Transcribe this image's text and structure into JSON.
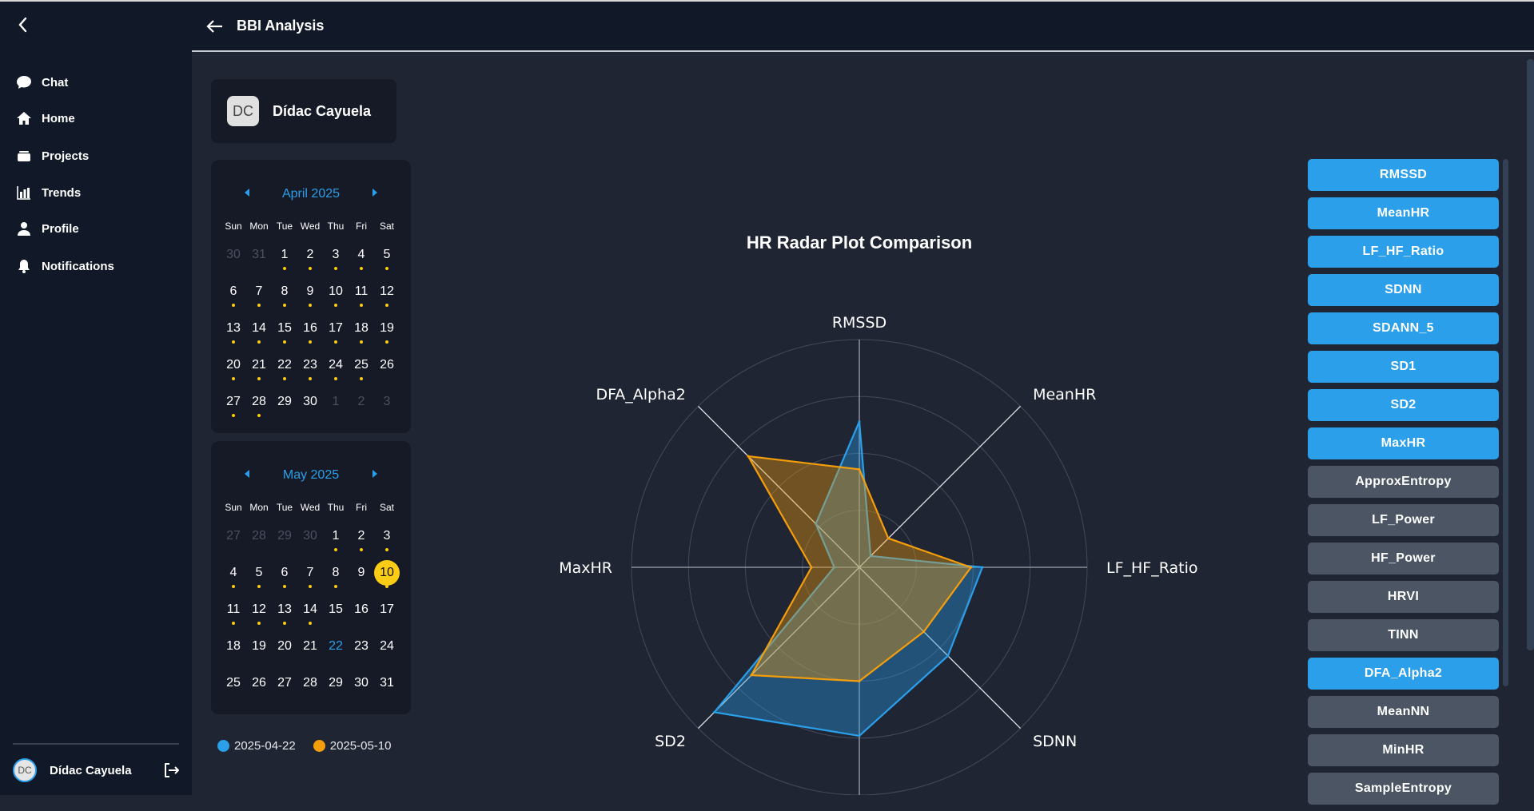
{
  "colors": {
    "accent": "#2b9fe9",
    "inactive": "#4b5563",
    "highlight": "#facc15",
    "series1": "#2b9fe9",
    "series2": "#f59e0b"
  },
  "sidebar": {
    "items": [
      {
        "label": "Chat",
        "icon": "chat-icon"
      },
      {
        "label": "Home",
        "icon": "home-icon"
      },
      {
        "label": "Projects",
        "icon": "projects-icon"
      },
      {
        "label": "Trends",
        "icon": "trends-icon"
      },
      {
        "label": "Profile",
        "icon": "profile-icon"
      },
      {
        "label": "Notifications",
        "icon": "bell-icon"
      }
    ],
    "user": {
      "initials": "DC",
      "name": "Dídac Cayuela"
    }
  },
  "header": {
    "title": "BBI Analysis"
  },
  "profile": {
    "initials": "DC",
    "name": "Dídac Cayuela"
  },
  "weekdays": [
    "Sun",
    "Mon",
    "Tue",
    "Wed",
    "Thu",
    "Fri",
    "Sat"
  ],
  "calendars": [
    {
      "title": "April 2025",
      "leading": [
        30,
        31
      ],
      "days": 30,
      "trailing": [
        1,
        2,
        3
      ],
      "dots": [
        1,
        2,
        3,
        4,
        5,
        6,
        7,
        8,
        9,
        10,
        11,
        12,
        13,
        14,
        15,
        16,
        17,
        18,
        19,
        20,
        21,
        22,
        23,
        24,
        25,
        27,
        28
      ],
      "selected": null,
      "today": null
    },
    {
      "title": "May 2025",
      "leading": [
        27,
        28,
        29,
        30
      ],
      "days": 31,
      "trailing": [],
      "dots": [
        1,
        2,
        3,
        4,
        5,
        6,
        7,
        8,
        10,
        11,
        12,
        13,
        14
      ],
      "selected": 10,
      "today": 22
    }
  ],
  "legend": [
    {
      "label": "2025-04-22"
    },
    {
      "label": "2025-05-10"
    }
  ],
  "metrics": [
    {
      "label": "RMSSD",
      "on": true
    },
    {
      "label": "MeanHR",
      "on": true
    },
    {
      "label": "LF_HF_Ratio",
      "on": true
    },
    {
      "label": "SDNN",
      "on": true
    },
    {
      "label": "SDANN_5",
      "on": true
    },
    {
      "label": "SD1",
      "on": true
    },
    {
      "label": "SD2",
      "on": true
    },
    {
      "label": "MaxHR",
      "on": true
    },
    {
      "label": "ApproxEntropy",
      "on": false
    },
    {
      "label": "LF_Power",
      "on": false
    },
    {
      "label": "HF_Power",
      "on": false
    },
    {
      "label": "HRVI",
      "on": false
    },
    {
      "label": "TINN",
      "on": false
    },
    {
      "label": "DFA_Alpha2",
      "on": true
    },
    {
      "label": "MeanNN",
      "on": false
    },
    {
      "label": "MinHR",
      "on": false
    },
    {
      "label": "SampleEntropy",
      "on": false
    }
  ],
  "chart_data": {
    "type": "radar",
    "title": "HR Radar Plot Comparison",
    "categories": [
      "RMSSD",
      "MeanHR",
      "LF_HF_Ratio",
      "SDNN",
      "",
      "SD2",
      "MaxHR",
      "DFA_Alpha2"
    ],
    "rlim": [
      0,
      1
    ],
    "rings": [
      0.25,
      0.5,
      0.75,
      1
    ],
    "series": [
      {
        "name": "2025-04-22",
        "values": [
          0.64,
          0.07,
          0.54,
          0.55,
          0.74,
          0.9,
          0.11,
          0.27
        ]
      },
      {
        "name": "2025-05-10",
        "values": [
          0.43,
          0.18,
          0.49,
          0.4,
          0.5,
          0.67,
          0.21,
          0.69
        ]
      }
    ],
    "legend": "left"
  }
}
